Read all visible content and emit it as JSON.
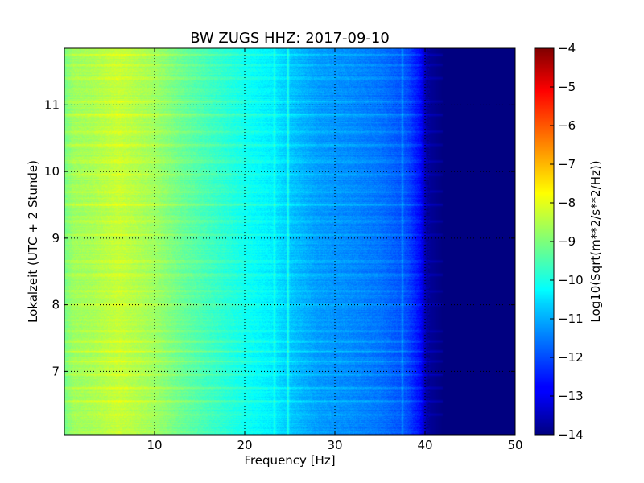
{
  "chart_data": {
    "type": "heatmap",
    "title": "BW ZUGS HHZ: 2017-09-10",
    "xlabel": "Frequency [Hz]",
    "ylabel": "Lokalzeit (UTC + 2 Stunde)",
    "xlim": [
      0,
      50
    ],
    "ylim": [
      11.85,
      6.05
    ],
    "x_ticks": [
      10,
      20,
      30,
      40,
      50
    ],
    "y_ticks": [
      7,
      8,
      9,
      10,
      11
    ],
    "grid": true,
    "colormap": "jet",
    "colorbar": {
      "label": "Log10(Sqrt(m**2/s**2/Hz))",
      "range": [
        -14,
        -4
      ],
      "ticks": [
        -4,
        -5,
        -6,
        -7,
        -8,
        -9,
        -10,
        -11,
        -12,
        -13,
        -14
      ]
    },
    "profile": {
      "frequencies": [
        0,
        1,
        3,
        6,
        8,
        10,
        13,
        16,
        20,
        23,
        25,
        28,
        32,
        35,
        38,
        39.5,
        40.2,
        42,
        50
      ],
      "log_psd": [
        -9.1,
        -8.7,
        -8.6,
        -8.3,
        -8.5,
        -8.7,
        -9.2,
        -9.6,
        -10.1,
        -10.4,
        -10.8,
        -11.2,
        -11.4,
        -11.6,
        -12.0,
        -12.7,
        -13.7,
        -14.0,
        -14.0
      ]
    },
    "lines": [
      {
        "frequency": 23.3,
        "delta": 0.5
      },
      {
        "frequency": 24.8,
        "delta": 0.9
      },
      {
        "frequency": 37.5,
        "delta": 0.6
      }
    ],
    "bands": [
      {
        "hour": 6.35,
        "delta": 0.35
      },
      {
        "hour": 6.55,
        "delta": 0.4
      },
      {
        "hour": 6.75,
        "delta": 0.35
      },
      {
        "hour": 6.95,
        "delta": 0.45
      },
      {
        "hour": 7.15,
        "delta": 0.35
      },
      {
        "hour": 7.3,
        "delta": 0.4
      },
      {
        "hour": 7.45,
        "delta": 0.35
      },
      {
        "hour": 7.6,
        "delta": 0.3
      },
      {
        "hour": 8.0,
        "delta": 0.35
      },
      {
        "hour": 8.2,
        "delta": 0.3
      },
      {
        "hour": 8.45,
        "delta": 0.4
      },
      {
        "hour": 8.65,
        "delta": 0.35
      },
      {
        "hour": 9.05,
        "delta": 0.3
      },
      {
        "hour": 9.25,
        "delta": 0.35
      },
      {
        "hour": 9.5,
        "delta": 0.4
      },
      {
        "hour": 9.7,
        "delta": 0.35
      },
      {
        "hour": 9.95,
        "delta": 0.3
      },
      {
        "hour": 10.15,
        "delta": 0.35
      },
      {
        "hour": 10.4,
        "delta": 0.3
      },
      {
        "hour": 10.6,
        "delta": 0.35
      },
      {
        "hour": 10.85,
        "delta": 0.4
      },
      {
        "hour": 11.05,
        "delta": 0.3
      },
      {
        "hour": 11.4,
        "delta": 0.35
      },
      {
        "hour": 11.6,
        "delta": 0.3
      },
      {
        "hour": 11.75,
        "delta": 0.4
      }
    ]
  }
}
